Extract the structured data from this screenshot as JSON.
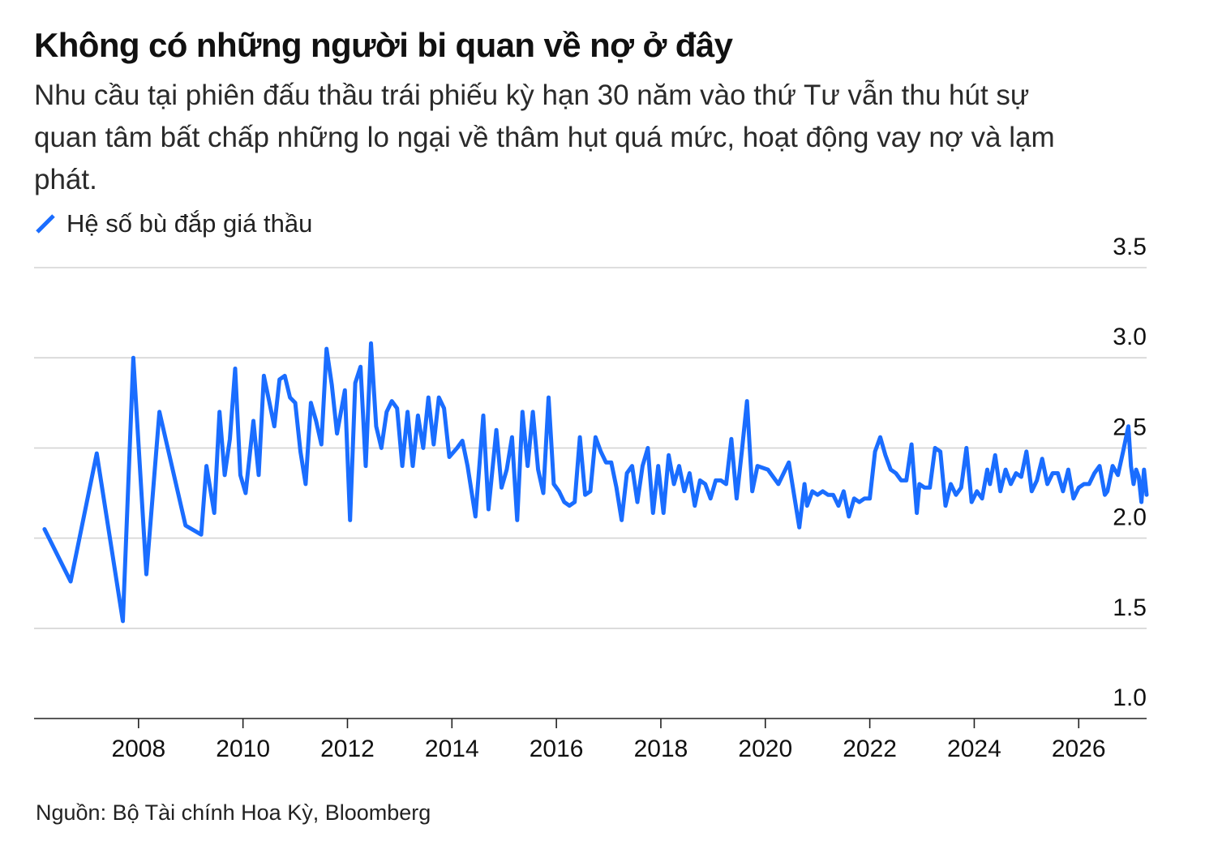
{
  "title": "Không có những người bi quan về nợ ở đây",
  "subtitle": "Nhu cầu tại phiên đấu thầu trái phiếu kỳ hạn 30 năm vào thứ Tư vẫn thu hút sự quan tâm bất chấp những lo ngại về thâm hụt quá mức, hoạt động vay nợ và lạm phát.",
  "source": "Nguồn: Bộ Tài chính Hoa Kỳ, Bloomberg",
  "colors": {
    "line": "#1a6dff",
    "grid": "#d4d4d4",
    "axis": "#222222",
    "text": "#111111"
  },
  "chart_data": {
    "type": "line",
    "legend_placement": "top-left",
    "grid": true,
    "y_axis_side": "right",
    "ylim": [
      1.0,
      3.5
    ],
    "yticks": [
      "1.0",
      "1.5",
      "2.0",
      "2.5",
      "3.0",
      "3.5"
    ],
    "xlim": [
      2006.0,
      2027.3
    ],
    "xticks": [
      "2008",
      "2010",
      "2012",
      "2014",
      "2016",
      "2018",
      "2020",
      "2022",
      "2024",
      "2026"
    ],
    "series": [
      {
        "name": "Hệ số bù đắp giá thầu",
        "points": [
          [
            2006.2,
            2.05
          ],
          [
            2006.7,
            1.76
          ],
          [
            2007.2,
            2.47
          ],
          [
            2007.7,
            1.54
          ],
          [
            2007.9,
            3.0
          ],
          [
            2008.15,
            1.8
          ],
          [
            2008.4,
            2.7
          ],
          [
            2008.9,
            2.07
          ],
          [
            2009.2,
            2.02
          ],
          [
            2009.3,
            2.4
          ],
          [
            2009.45,
            2.14
          ],
          [
            2009.55,
            2.7
          ],
          [
            2009.65,
            2.35
          ],
          [
            2009.75,
            2.55
          ],
          [
            2009.85,
            2.94
          ],
          [
            2009.95,
            2.35
          ],
          [
            2010.05,
            2.25
          ],
          [
            2010.2,
            2.65
          ],
          [
            2010.3,
            2.35
          ],
          [
            2010.4,
            2.9
          ],
          [
            2010.5,
            2.76
          ],
          [
            2010.6,
            2.62
          ],
          [
            2010.7,
            2.88
          ],
          [
            2010.8,
            2.9
          ],
          [
            2010.9,
            2.78
          ],
          [
            2011.0,
            2.75
          ],
          [
            2011.1,
            2.48
          ],
          [
            2011.2,
            2.3
          ],
          [
            2011.3,
            2.75
          ],
          [
            2011.4,
            2.65
          ],
          [
            2011.5,
            2.52
          ],
          [
            2011.6,
            3.05
          ],
          [
            2011.7,
            2.85
          ],
          [
            2011.8,
            2.58
          ],
          [
            2011.95,
            2.82
          ],
          [
            2012.05,
            2.1
          ],
          [
            2012.15,
            2.86
          ],
          [
            2012.25,
            2.95
          ],
          [
            2012.35,
            2.4
          ],
          [
            2012.45,
            3.08
          ],
          [
            2012.55,
            2.62
          ],
          [
            2012.65,
            2.5
          ],
          [
            2012.75,
            2.7
          ],
          [
            2012.85,
            2.76
          ],
          [
            2012.95,
            2.72
          ],
          [
            2013.05,
            2.4
          ],
          [
            2013.15,
            2.7
          ],
          [
            2013.25,
            2.4
          ],
          [
            2013.35,
            2.68
          ],
          [
            2013.45,
            2.5
          ],
          [
            2013.55,
            2.78
          ],
          [
            2013.65,
            2.52
          ],
          [
            2013.75,
            2.78
          ],
          [
            2013.85,
            2.72
          ],
          [
            2013.95,
            2.45
          ],
          [
            2014.1,
            2.5
          ],
          [
            2014.2,
            2.54
          ],
          [
            2014.3,
            2.4
          ],
          [
            2014.45,
            2.12
          ],
          [
            2014.6,
            2.68
          ],
          [
            2014.7,
            2.16
          ],
          [
            2014.85,
            2.6
          ],
          [
            2014.95,
            2.28
          ],
          [
            2015.05,
            2.38
          ],
          [
            2015.15,
            2.56
          ],
          [
            2015.25,
            2.1
          ],
          [
            2015.35,
            2.7
          ],
          [
            2015.45,
            2.4
          ],
          [
            2015.55,
            2.7
          ],
          [
            2015.65,
            2.38
          ],
          [
            2015.75,
            2.25
          ],
          [
            2015.85,
            2.78
          ],
          [
            2015.95,
            2.3
          ],
          [
            2016.05,
            2.26
          ],
          [
            2016.15,
            2.2
          ],
          [
            2016.25,
            2.18
          ],
          [
            2016.35,
            2.2
          ],
          [
            2016.45,
            2.56
          ],
          [
            2016.55,
            2.24
          ],
          [
            2016.65,
            2.26
          ],
          [
            2016.75,
            2.56
          ],
          [
            2016.85,
            2.48
          ],
          [
            2016.95,
            2.42
          ],
          [
            2017.05,
            2.42
          ],
          [
            2017.15,
            2.28
          ],
          [
            2017.25,
            2.1
          ],
          [
            2017.35,
            2.36
          ],
          [
            2017.45,
            2.4
          ],
          [
            2017.55,
            2.2
          ],
          [
            2017.65,
            2.4
          ],
          [
            2017.75,
            2.5
          ],
          [
            2017.85,
            2.14
          ],
          [
            2017.95,
            2.4
          ],
          [
            2018.05,
            2.14
          ],
          [
            2018.15,
            2.46
          ],
          [
            2018.25,
            2.3
          ],
          [
            2018.35,
            2.4
          ],
          [
            2018.45,
            2.26
          ],
          [
            2018.55,
            2.36
          ],
          [
            2018.65,
            2.18
          ],
          [
            2018.75,
            2.32
          ],
          [
            2018.85,
            2.3
          ],
          [
            2018.95,
            2.22
          ],
          [
            2019.05,
            2.32
          ],
          [
            2019.15,
            2.32
          ],
          [
            2019.25,
            2.3
          ],
          [
            2019.35,
            2.55
          ],
          [
            2019.45,
            2.22
          ],
          [
            2019.55,
            2.48
          ],
          [
            2019.65,
            2.76
          ],
          [
            2019.75,
            2.26
          ],
          [
            2019.85,
            2.4
          ],
          [
            2020.05,
            2.38
          ],
          [
            2020.25,
            2.3
          ],
          [
            2020.45,
            2.42
          ],
          [
            2020.65,
            2.06
          ],
          [
            2020.75,
            2.3
          ],
          [
            2020.8,
            2.18
          ],
          [
            2020.9,
            2.26
          ],
          [
            2021.0,
            2.24
          ],
          [
            2021.1,
            2.26
          ],
          [
            2021.2,
            2.24
          ],
          [
            2021.3,
            2.24
          ],
          [
            2021.4,
            2.18
          ],
          [
            2021.5,
            2.26
          ],
          [
            2021.6,
            2.12
          ],
          [
            2021.7,
            2.22
          ],
          [
            2021.8,
            2.2
          ],
          [
            2021.9,
            2.22
          ],
          [
            2022.0,
            2.22
          ],
          [
            2022.1,
            2.48
          ],
          [
            2022.2,
            2.56
          ],
          [
            2022.3,
            2.46
          ],
          [
            2022.4,
            2.38
          ],
          [
            2022.5,
            2.36
          ],
          [
            2022.6,
            2.32
          ],
          [
            2022.7,
            2.32
          ],
          [
            2022.8,
            2.52
          ],
          [
            2022.9,
            2.14
          ],
          [
            2022.95,
            2.3
          ],
          [
            2023.05,
            2.28
          ],
          [
            2023.15,
            2.28
          ],
          [
            2023.25,
            2.5
          ],
          [
            2023.35,
            2.48
          ],
          [
            2023.45,
            2.18
          ],
          [
            2023.55,
            2.3
          ],
          [
            2023.65,
            2.24
          ],
          [
            2023.75,
            2.28
          ],
          [
            2023.85,
            2.5
          ],
          [
            2023.95,
            2.2
          ],
          [
            2024.05,
            2.26
          ],
          [
            2024.15,
            2.22
          ],
          [
            2024.25,
            2.38
          ],
          [
            2024.3,
            2.3
          ],
          [
            2024.4,
            2.46
          ],
          [
            2024.5,
            2.26
          ],
          [
            2024.6,
            2.38
          ],
          [
            2024.7,
            2.3
          ],
          [
            2024.8,
            2.36
          ],
          [
            2024.9,
            2.34
          ],
          [
            2025.0,
            2.48
          ],
          [
            2025.1,
            2.26
          ],
          [
            2025.2,
            2.32
          ],
          [
            2025.3,
            2.44
          ],
          [
            2025.4,
            2.3
          ],
          [
            2025.5,
            2.36
          ],
          [
            2025.6,
            2.36
          ],
          [
            2025.7,
            2.26
          ],
          [
            2025.8,
            2.38
          ],
          [
            2025.9,
            2.22
          ],
          [
            2026.0,
            2.28
          ],
          [
            2026.1,
            2.3
          ],
          [
            2026.2,
            2.3
          ],
          [
            2026.3,
            2.36
          ],
          [
            2026.4,
            2.4
          ],
          [
            2026.5,
            2.24
          ],
          [
            2026.55,
            2.26
          ],
          [
            2026.65,
            2.4
          ],
          [
            2026.75,
            2.35
          ],
          [
            2026.85,
            2.48
          ],
          [
            2026.95,
            2.62
          ],
          [
            2027.0,
            2.4
          ],
          [
            2027.05,
            2.3
          ],
          [
            2027.1,
            2.38
          ],
          [
            2027.15,
            2.34
          ],
          [
            2027.2,
            2.2
          ],
          [
            2027.25,
            2.38
          ],
          [
            2027.3,
            2.24
          ]
        ]
      }
    ]
  }
}
